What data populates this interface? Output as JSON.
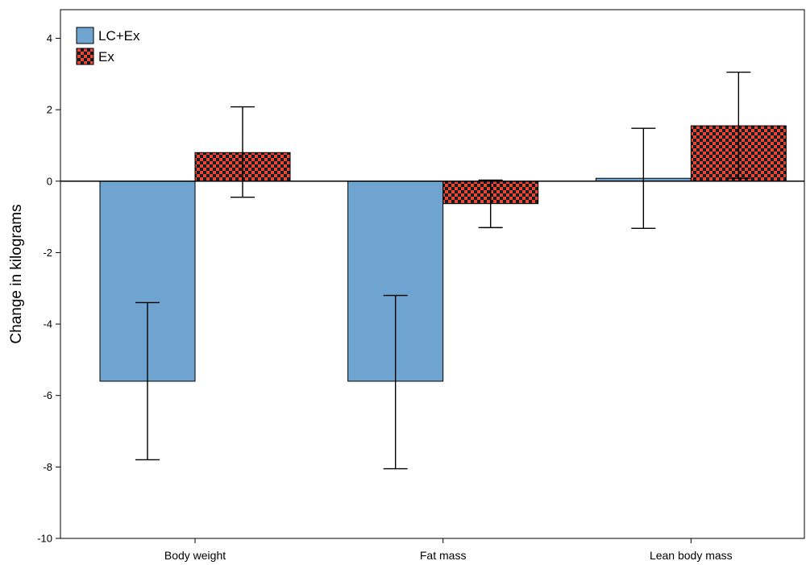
{
  "chart_data": {
    "type": "bar",
    "categories": [
      "Body weight",
      "Fat mass",
      "Lean body mass"
    ],
    "series": [
      {
        "name": "LC+Ex",
        "values": [
          -5.6,
          -5.6,
          0.08
        ],
        "error_low": [
          -7.8,
          -8.05,
          -1.32
        ],
        "error_high": [
          -3.4,
          -3.2,
          1.48
        ],
        "color": "#6fa4d0",
        "pattern": "solid"
      },
      {
        "name": "Ex",
        "values": [
          0.8,
          -0.63,
          1.55
        ],
        "error_low": [
          -0.45,
          -1.3,
          0.08
        ],
        "error_high": [
          2.08,
          0.03,
          3.05
        ],
        "color": "#e8483a",
        "pattern_color": "#1a1a1a",
        "pattern": "checkered"
      }
    ],
    "title": "",
    "xlabel": "",
    "ylabel": "Change in kilograms",
    "ylim": [
      -10,
      4.8
    ],
    "yticks": [
      "4",
      "2",
      "0",
      "-2",
      "-4",
      "-6",
      "-8",
      "-10"
    ],
    "grid": false,
    "legend_position": "top-left"
  }
}
